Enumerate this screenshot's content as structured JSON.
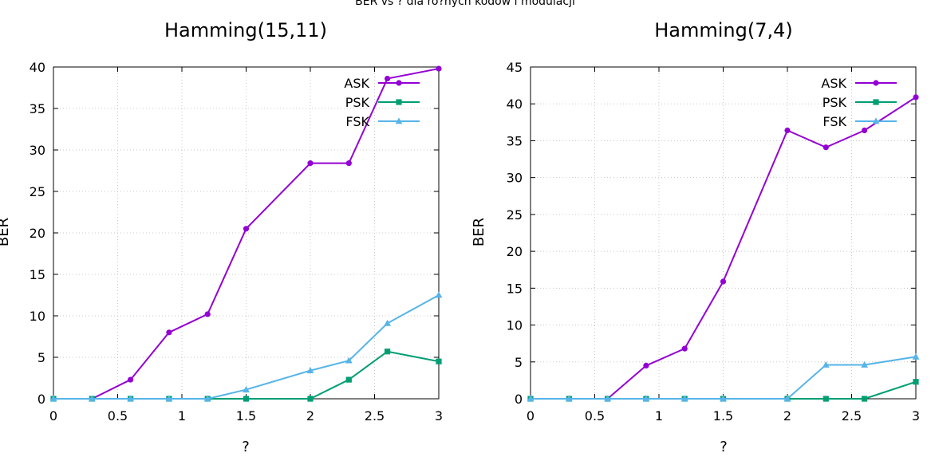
{
  "figure": {
    "suptitle": "BER vs ? dla ró?nych kodów i modulacji"
  },
  "colors": {
    "ASK": "#9400d3",
    "PSK": "#009e73",
    "FSK": "#56b4e9",
    "frame": "#000000",
    "grid": "#c8c8c8"
  },
  "chart_data": [
    {
      "type": "line",
      "title": "Hamming(15,11)",
      "xlabel": "?",
      "ylabel": "BER",
      "xlim": [
        0,
        3
      ],
      "ylim": [
        0,
        40
      ],
      "xticks": [
        0,
        0.5,
        1,
        1.5,
        2,
        2.5,
        3
      ],
      "xtick_labels": [
        "0",
        "0.5",
        "1",
        "1.5",
        "2",
        "2.5",
        "3"
      ],
      "yticks": [
        0,
        5,
        10,
        15,
        20,
        25,
        30,
        35,
        40
      ],
      "ytick_labels": [
        "0",
        "5",
        "10",
        "15",
        "20",
        "25",
        "30",
        "35",
        "40"
      ],
      "grid": true,
      "legend": "top-right",
      "x": [
        0,
        0.3,
        0.6,
        0.9,
        1.2,
        1.5,
        2.0,
        2.3,
        2.6,
        3.0
      ],
      "series": [
        {
          "name": "ASK",
          "marker": "circle",
          "values": [
            0,
            0,
            2.3,
            8.0,
            10.2,
            20.5,
            28.4,
            28.4,
            38.6,
            39.8
          ]
        },
        {
          "name": "PSK",
          "marker": "square",
          "values": [
            0,
            0,
            0,
            0,
            0,
            0,
            0,
            2.3,
            5.7,
            4.5
          ]
        },
        {
          "name": "FSK",
          "marker": "triangle",
          "values": [
            0,
            0,
            0,
            0,
            0,
            1.1,
            3.4,
            4.6,
            9.1,
            12.5
          ]
        }
      ]
    },
    {
      "type": "line",
      "title": "Hamming(7,4)",
      "xlabel": "?",
      "ylabel": "BER",
      "xlim": [
        0,
        3
      ],
      "ylim": [
        0,
        45
      ],
      "xticks": [
        0,
        0.5,
        1,
        1.5,
        2,
        2.5,
        3
      ],
      "xtick_labels": [
        "0",
        "0.5",
        "1",
        "1.5",
        "2",
        "2.5",
        "3"
      ],
      "yticks": [
        0,
        5,
        10,
        15,
        20,
        25,
        30,
        35,
        40,
        45
      ],
      "ytick_labels": [
        "0",
        "5",
        "10",
        "15",
        "20",
        "25",
        "30",
        "35",
        "40",
        "45"
      ],
      "grid": true,
      "legend": "top-right",
      "x": [
        0,
        0.3,
        0.6,
        0.9,
        1.2,
        1.5,
        2.0,
        2.3,
        2.6,
        3.0
      ],
      "series": [
        {
          "name": "ASK",
          "marker": "circle",
          "values": [
            0,
            0,
            0,
            4.5,
            6.8,
            15.9,
            36.4,
            34.1,
            36.4,
            40.9
          ]
        },
        {
          "name": "PSK",
          "marker": "square",
          "values": [
            0,
            0,
            0,
            0,
            0,
            0,
            0,
            0,
            0,
            2.3
          ]
        },
        {
          "name": "FSK",
          "marker": "triangle",
          "values": [
            0,
            0,
            0,
            0,
            0,
            0,
            0,
            4.6,
            4.6,
            5.7
          ]
        }
      ]
    }
  ]
}
